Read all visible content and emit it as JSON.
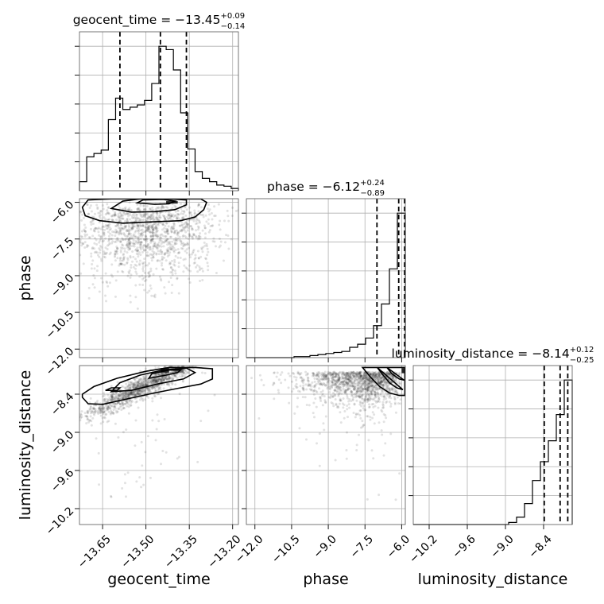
{
  "chart_data": {
    "type": "corner",
    "parameters": [
      "geocent_time",
      "phase",
      "luminosity_distance"
    ],
    "axis_labels": {
      "geocent_time": "geocent_time",
      "phase": "phase",
      "luminosity_distance": "luminosity_distance"
    },
    "ranges": {
      "geocent_time": [
        -13.73,
        -13.18
      ],
      "phase": [
        -12.35,
        -5.85
      ],
      "luminosity_distance": [
        -10.45,
        -7.95
      ]
    },
    "ticks": {
      "geocent_time": [
        -13.65,
        -13.5,
        -13.35,
        -13.2
      ],
      "phase": [
        -12.0,
        -10.5,
        -9.0,
        -7.5,
        -6.0
      ],
      "luminosity_distance": [
        -10.2,
        -9.6,
        -9.0,
        -8.4
      ]
    },
    "tick_labels": {
      "geocent_time": [
        "−13.65",
        "−13.50",
        "−13.35",
        "−13.20"
      ],
      "phase": [
        "−12.0",
        "−10.5",
        "−9.0",
        "−7.5",
        "−6.0"
      ],
      "luminosity_distance": [
        "−10.2",
        "−9.6",
        "−9.0",
        "−8.4"
      ]
    },
    "titles": [
      {
        "param": "geocent_time",
        "prefix": "geocent_time = −13.45",
        "sup": "+0.09",
        "sub": "−0.14"
      },
      {
        "param": "phase",
        "prefix": "phase = −6.12",
        "sup": "+0.24",
        "sub": "−0.89"
      },
      {
        "param": "luminosity_distance",
        "prefix": "luminosity_distance = −8.14",
        "sup": "+0.12",
        "sub": "−0.25"
      }
    ],
    "quantiles": {
      "geocent_time": [
        -13.59,
        -13.45,
        -13.36
      ],
      "phase": [
        -7.01,
        -6.12,
        -5.88
      ],
      "luminosity_distance": [
        -8.39,
        -8.14,
        -8.02
      ]
    },
    "histograms": {
      "geocent_time": {
        "edges": [
          -13.73,
          -13.705,
          -13.68,
          -13.655,
          -13.63,
          -13.605,
          -13.58,
          -13.555,
          -13.53,
          -13.505,
          -13.48,
          -13.455,
          -13.43,
          -13.405,
          -13.38,
          -13.355,
          -13.33,
          -13.305,
          -13.28,
          -13.255,
          -13.23,
          -13.205,
          -13.18
        ],
        "counts": [
          8,
          30,
          33,
          36,
          63,
          82,
          72,
          74,
          76,
          80,
          95,
          128,
          125,
          107,
          69,
          37,
          17,
          11,
          8,
          5,
          4,
          2
        ]
      },
      "phase": {
        "edges": [
          -12.35,
          -12.025,
          -11.7,
          -11.375,
          -11.05,
          -10.725,
          -10.4,
          -10.075,
          -9.75,
          -9.425,
          -9.1,
          -8.775,
          -8.45,
          -8.125,
          -7.8,
          -7.475,
          -7.15,
          -6.825,
          -6.5,
          -6.175,
          -5.85
        ],
        "counts": [
          0,
          0,
          0,
          0,
          0,
          0,
          1,
          1,
          2,
          3,
          4,
          5,
          6,
          10,
          13,
          19,
          31,
          52,
          86,
          140
        ]
      },
      "luminosity_distance": {
        "edges": [
          -10.45,
          -10.325,
          -10.2,
          -10.075,
          -9.95,
          -9.825,
          -9.7,
          -9.575,
          -9.45,
          -9.325,
          -9.2,
          -9.075,
          -8.95,
          -8.825,
          -8.7,
          -8.575,
          -8.45,
          -8.325,
          -8.2,
          -8.075,
          -7.95
        ],
        "counts": [
          0,
          0,
          0,
          0,
          0,
          0,
          0,
          0,
          0,
          0,
          0,
          0,
          2,
          7,
          20,
          42,
          60,
          80,
          105,
          138
        ]
      }
    },
    "scatter_panels": [
      {
        "x": "geocent_time",
        "y": "phase",
        "cloud": {
          "x_center": -13.5,
          "x_sd": 0.13,
          "y_peak": -6.0,
          "y_scale": 0.9
        },
        "contours": [
          {
            "x": [
              -13.71,
              -13.66,
              -13.58,
              -13.48,
              -13.38,
              -13.33,
              -13.3,
              -13.29,
              -13.31,
              -13.36,
              -13.44,
              -13.52,
              -13.62,
              -13.7,
              -13.72
            ],
            "y": [
              -6.55,
              -6.75,
              -6.85,
              -6.8,
              -6.75,
              -6.6,
              -6.3,
              -6.0,
              -5.86,
              -5.86,
              -5.86,
              -5.86,
              -5.86,
              -5.9,
              -6.2
            ]
          },
          {
            "x": [
              -13.62,
              -13.55,
              -13.47,
              -13.4,
              -13.36,
              -13.36,
              -13.42,
              -13.52,
              -13.58
            ],
            "y": [
              -6.25,
              -6.4,
              -6.38,
              -6.3,
              -6.1,
              -5.9,
              -5.86,
              -5.86,
              -5.95
            ]
          },
          {
            "x": [
              -13.53,
              -13.47,
              -13.42,
              -13.4,
              -13.44,
              -13.51
            ],
            "y": [
              -6.02,
              -6.08,
              -6.06,
              -5.95,
              -5.88,
              -5.9
            ]
          }
        ],
        "density_bins": [
          {
            "x": [
              -13.43,
              -13.39
            ],
            "y": [
              -5.95,
              -6.05
            ],
            "level": 0.85
          }
        ]
      },
      {
        "x": "geocent_time",
        "y": "luminosity_distance",
        "cloud": {
          "slope": 2.3,
          "intercept_at": -13.45,
          "y_at": -8.14,
          "y_sd": 0.09
        },
        "contours": [
          {
            "x": [
              -13.72,
              -13.7,
              -13.65,
              -13.57,
              -13.47,
              -13.38,
              -13.31,
              -13.27,
              -13.27,
              -13.33,
              -13.42,
              -13.5,
              -13.6,
              -13.68,
              -13.72
            ],
            "y": [
              -8.45,
              -8.55,
              -8.56,
              -8.48,
              -8.38,
              -8.3,
              -8.24,
              -8.16,
              -8.0,
              -7.98,
              -7.98,
              -8.04,
              -8.15,
              -8.28,
              -8.4
            ]
          },
          {
            "x": [
              -13.62,
              -13.55,
              -13.46,
              -13.37,
              -13.33,
              -13.36,
              -13.44,
              -13.52,
              -13.59
            ],
            "y": [
              -8.36,
              -8.34,
              -8.24,
              -8.16,
              -8.06,
              -7.99,
              -8.02,
              -8.1,
              -8.22
            ]
          },
          {
            "x": [
              -13.64,
              -13.6,
              -13.59,
              -13.62
            ],
            "y": [
              -8.34,
              -8.34,
              -8.3,
              -8.3
            ]
          },
          {
            "x": [
              -13.49,
              -13.43,
              -13.39,
              -13.38,
              -13.42,
              -13.48
            ],
            "y": [
              -8.15,
              -8.1,
              -8.06,
              -8.02,
              -8.02,
              -8.08
            ]
          }
        ],
        "density_bins": [
          {
            "x": [
              -13.45,
              -13.42
            ],
            "y": [
              -7.99,
              -8.06
            ],
            "level": 0.85
          },
          {
            "x": [
              -13.4,
              -13.37
            ],
            "y": [
              -7.99,
              -8.06
            ],
            "level": 0.6
          }
        ]
      },
      {
        "x": "phase",
        "y": "luminosity_distance",
        "cloud": {
          "x_peak": -6.0,
          "x_scale": 1.2,
          "y_peak": -8.05,
          "y_scale": 0.35
        },
        "contours": [
          {
            "x": [
              -7.6,
              -7.3,
              -6.9,
              -6.5,
              -6.1,
              -5.87,
              -5.87
            ],
            "y": [
              -7.98,
              -8.12,
              -8.28,
              -8.38,
              -8.42,
              -8.42,
              -7.98
            ]
          },
          {
            "x": [
              -7.0,
              -6.8,
              -6.5,
              -6.2,
              -5.95
            ],
            "y": [
              -7.98,
              -8.08,
              -8.22,
              -8.3,
              -8.33
            ]
          },
          {
            "x": [
              -6.6,
              -6.4,
              -6.1,
              -5.9
            ],
            "y": [
              -7.98,
              -8.08,
              -8.16,
              -8.18
            ]
          }
        ],
        "density_bins": [
          {
            "x": [
              -6.0,
              -5.86
            ],
            "y": [
              -7.99,
              -8.07
            ],
            "level": 0.85
          }
        ]
      }
    ]
  }
}
